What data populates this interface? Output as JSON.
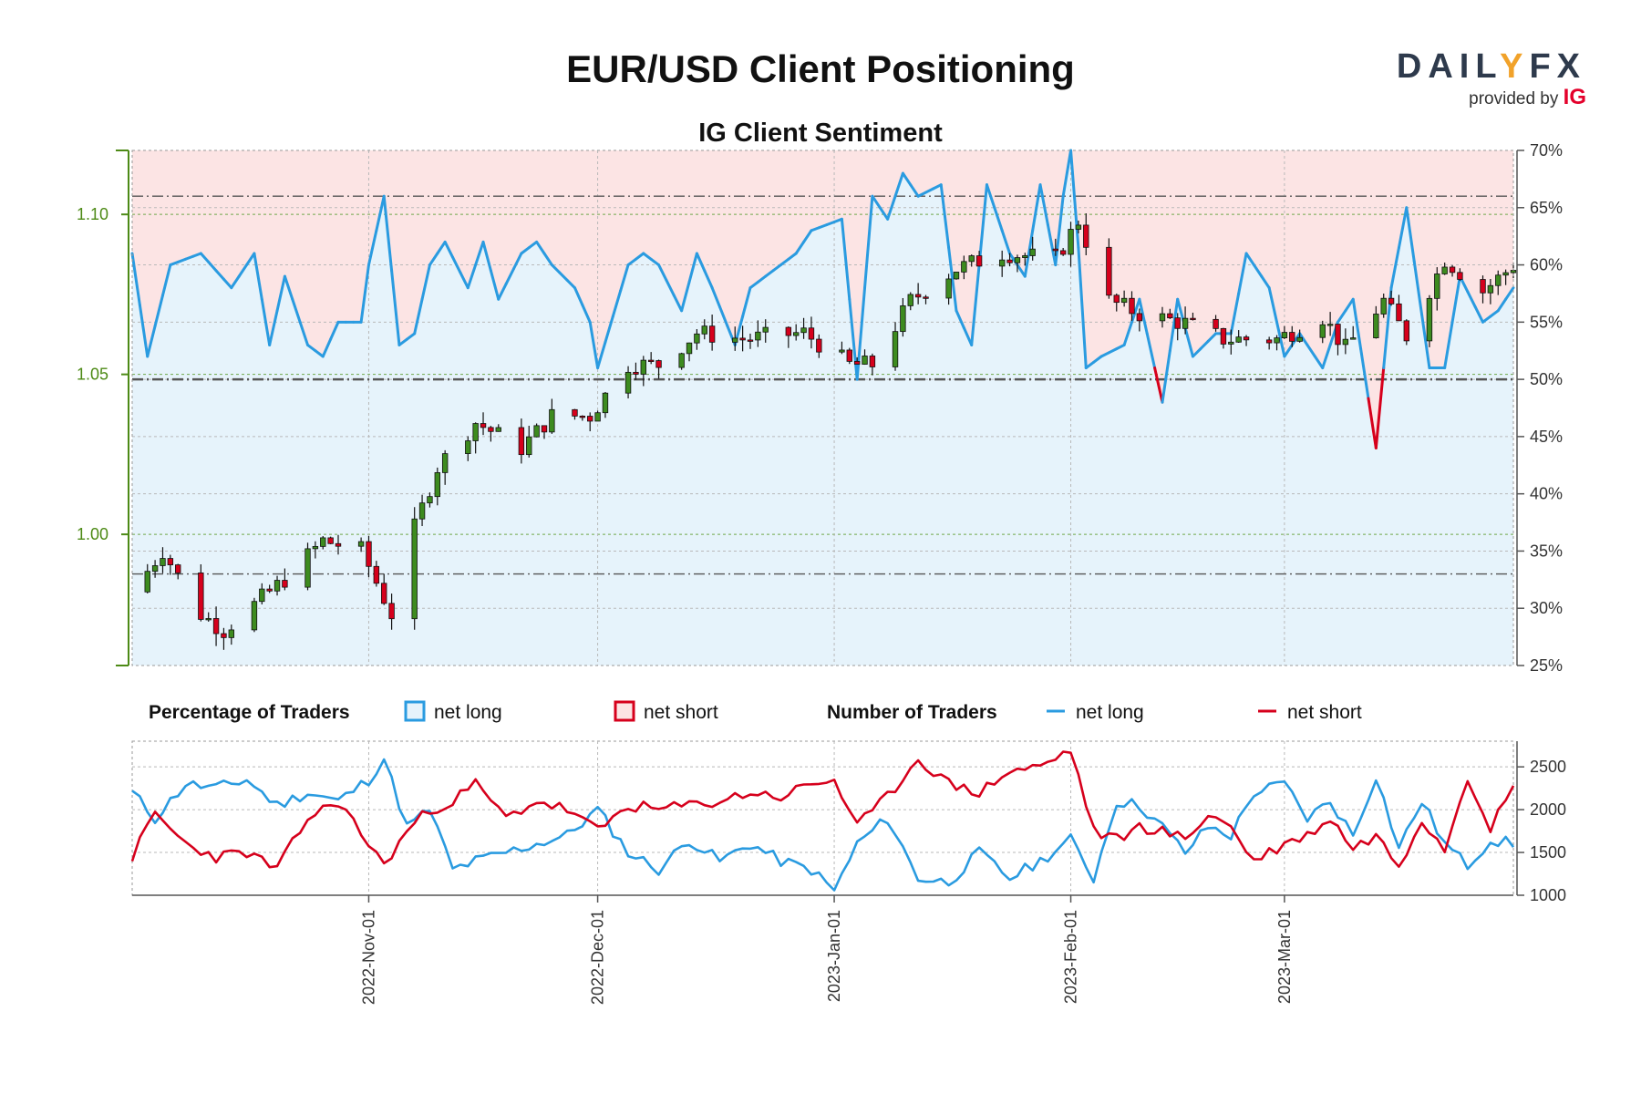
{
  "header": {
    "title": "EUR/USD Client Positioning",
    "subtitle": "IG Client Sentiment",
    "logo_main_a": "DAIL",
    "logo_main_b": "Y",
    "logo_main_c": "FX",
    "logo_sub": "provided by",
    "logo_sub_brand": "IG"
  },
  "colors": {
    "net_long": "#2a9be0",
    "net_short": "#d6001c",
    "long_fill": "#e6f3fb",
    "short_fill": "#fce4e4",
    "candle_up": "#3d8b1f",
    "candle_down": "#d6001c",
    "price_axis": "#4d8a16"
  },
  "legend": {
    "pct_header": "Percentage of Traders",
    "pct_long": "net long",
    "pct_short": "net short",
    "num_header": "Number of Traders",
    "num_long": "net long",
    "num_short": "net short"
  },
  "chart_data": {
    "type": "candlestick+line",
    "x_start": "2022-10-01",
    "x_end": "2023-03-31",
    "x_ticks": [
      "2022-Nov-01",
      "2022-Dec-01",
      "2023-Jan-01",
      "2023-Feb-01",
      "2023-Mar-01"
    ],
    "x_tick_dates": [
      "2022-11-01",
      "2022-12-01",
      "2023-01-01",
      "2023-02-01",
      "2023-03-01"
    ],
    "price_axis": {
      "ticks": [
        "1.00",
        "1.05",
        "1.10"
      ],
      "tick_values": [
        1.0,
        1.05,
        1.1
      ],
      "range": [
        0.959,
        1.12
      ]
    },
    "percent_axis": {
      "ticks": [
        "25%",
        "30%",
        "35%",
        "40%",
        "45%",
        "50%",
        "55%",
        "60%",
        "65%",
        "70%"
      ],
      "tick_values": [
        25,
        30,
        35,
        40,
        45,
        50,
        55,
        60,
        65,
        70
      ],
      "range": [
        25,
        70
      ]
    },
    "count_axis": {
      "ticks": [
        "1000",
        "1500",
        "2000",
        "2500"
      ],
      "tick_values": [
        1000,
        1500,
        2000,
        2500
      ],
      "range": [
        1000,
        2800
      ]
    },
    "reference_lines_pct": [
      66,
      50,
      33
    ],
    "price_anchor_dates": [
      "2022-10-01",
      "2022-10-05",
      "2022-10-10",
      "2022-10-13",
      "2022-10-17",
      "2022-10-21",
      "2022-10-26",
      "2022-10-31",
      "2022-11-04",
      "2022-11-07",
      "2022-11-10",
      "2022-11-15",
      "2022-11-21",
      "2022-11-25",
      "2022-11-30",
      "2022-12-05",
      "2022-12-09",
      "2022-12-14",
      "2022-12-20",
      "2022-12-28",
      "2023-01-03",
      "2023-01-06",
      "2023-01-11",
      "2023-01-17",
      "2023-01-23",
      "2023-01-30",
      "2023-02-02",
      "2023-02-06",
      "2023-02-10",
      "2023-02-16",
      "2023-02-21",
      "2023-02-28",
      "2023-03-06",
      "2023-03-09",
      "2023-03-14",
      "2023-03-17",
      "2023-03-22",
      "2023-03-27",
      "2023-03-31"
    ],
    "price_anchor_values": [
      0.982,
      0.995,
      0.975,
      0.97,
      0.978,
      0.986,
      0.998,
      0.995,
      0.975,
      1.002,
      1.021,
      1.035,
      1.027,
      1.037,
      1.037,
      1.053,
      1.053,
      1.063,
      1.061,
      1.063,
      1.053,
      1.053,
      1.073,
      1.083,
      1.088,
      1.086,
      1.098,
      1.073,
      1.069,
      1.066,
      1.061,
      1.061,
      1.068,
      1.058,
      1.073,
      1.062,
      1.086,
      1.076,
      1.084
    ],
    "long_pct_anchor_dates": [
      "2022-10-01",
      "2022-10-03",
      "2022-10-06",
      "2022-10-10",
      "2022-10-14",
      "2022-10-17",
      "2022-10-19",
      "2022-10-21",
      "2022-10-24",
      "2022-10-26",
      "2022-10-28",
      "2022-10-31",
      "2022-11-01",
      "2022-11-03",
      "2022-11-05",
      "2022-11-07",
      "2022-11-09",
      "2022-11-11",
      "2022-11-14",
      "2022-11-16",
      "2022-11-18",
      "2022-11-21",
      "2022-11-23",
      "2022-11-25",
      "2022-11-28",
      "2022-11-30",
      "2022-12-01",
      "2022-12-05",
      "2022-12-07",
      "2022-12-09",
      "2022-12-12",
      "2022-12-14",
      "2022-12-16",
      "2022-12-19",
      "2022-12-21",
      "2022-12-23",
      "2022-12-27",
      "2022-12-29",
      "2023-01-02",
      "2023-01-04",
      "2023-01-06",
      "2023-01-08",
      "2023-01-10",
      "2023-01-12",
      "2023-01-15",
      "2023-01-17",
      "2023-01-19",
      "2023-01-21",
      "2023-01-24",
      "2023-01-26",
      "2023-01-28",
      "2023-01-30",
      "2023-02-01",
      "2023-02-03",
      "2023-02-05",
      "2023-02-08",
      "2023-02-10",
      "2023-02-13",
      "2023-02-15",
      "2023-02-17",
      "2023-02-20",
      "2023-02-22",
      "2023-02-24",
      "2023-02-27",
      "2023-03-01",
      "2023-03-03",
      "2023-03-06",
      "2023-03-08",
      "2023-03-10",
      "2023-03-13",
      "2023-03-15",
      "2023-03-17",
      "2023-03-20",
      "2023-03-22",
      "2023-03-24",
      "2023-03-27",
      "2023-03-29",
      "2023-03-31"
    ],
    "long_pct_anchor_values": [
      61,
      52,
      60,
      61,
      58,
      61,
      53,
      59,
      53,
      52,
      55,
      55,
      60,
      66,
      53,
      54,
      60,
      62,
      58,
      62,
      57,
      61,
      62,
      60,
      58,
      55,
      51,
      60,
      61,
      60,
      56,
      61,
      58,
      53,
      58,
      59,
      61,
      63,
      64,
      50,
      66,
      64,
      68,
      66,
      67,
      56,
      53,
      67,
      61,
      59,
      67,
      60,
      72,
      51,
      52,
      53,
      57,
      48,
      57,
      52,
      54,
      54,
      61,
      58,
      52,
      54,
      51,
      55,
      57,
      44,
      58,
      65,
      51,
      51,
      59,
      55,
      56,
      58
    ],
    "long_count_anchor_dates": [
      "2022-10-01",
      "2022-10-04",
      "2022-10-08",
      "2022-10-12",
      "2022-10-16",
      "2022-10-20",
      "2022-10-24",
      "2022-10-28",
      "2022-11-01",
      "2022-11-03",
      "2022-11-06",
      "2022-11-09",
      "2022-11-12",
      "2022-11-15",
      "2022-11-19",
      "2022-11-23",
      "2022-11-27",
      "2022-12-01",
      "2022-12-05",
      "2022-12-09",
      "2022-12-13",
      "2022-12-17",
      "2022-12-21",
      "2022-12-25",
      "2022-12-29",
      "2023-01-01",
      "2023-01-04",
      "2023-01-08",
      "2023-01-12",
      "2023-01-16",
      "2023-01-20",
      "2023-01-24",
      "2023-01-28",
      "2023-02-01",
      "2023-02-04",
      "2023-02-07",
      "2023-02-10",
      "2023-02-13",
      "2023-02-16",
      "2023-02-19",
      "2023-02-22",
      "2023-02-25",
      "2023-03-01",
      "2023-03-04",
      "2023-03-07",
      "2023-03-10",
      "2023-03-13",
      "2023-03-16",
      "2023-03-19",
      "2023-03-22",
      "2023-03-25",
      "2023-03-28",
      "2023-03-31"
    ],
    "long_count_anchor_values": [
      2200,
      1900,
      2300,
      2250,
      2350,
      2050,
      2200,
      2100,
      2350,
      2600,
      1800,
      2000,
      1300,
      1400,
      1500,
      1600,
      1700,
      2000,
      1500,
      1300,
      1650,
      1400,
      1600,
      1400,
      1300,
      1050,
      1600,
      1900,
      1200,
      1150,
      1500,
      1200,
      1400,
      1650,
      1200,
      2100,
      2050,
      1800,
      1500,
      1800,
      1700,
      2200,
      2300,
      1900,
      2100,
      1700,
      2400,
      1550,
      2100,
      1600,
      1350,
      1650,
      1600
    ],
    "short_count_anchor_dates": [
      "2022-10-01",
      "2022-10-04",
      "2022-10-08",
      "2022-10-12",
      "2022-10-16",
      "2022-10-20",
      "2022-10-24",
      "2022-10-28",
      "2022-11-01",
      "2022-11-03",
      "2022-11-06",
      "2022-11-09",
      "2022-11-12",
      "2022-11-15",
      "2022-11-19",
      "2022-11-23",
      "2022-11-27",
      "2022-12-01",
      "2022-12-05",
      "2022-12-09",
      "2022-12-13",
      "2022-12-17",
      "2022-12-21",
      "2022-12-25",
      "2022-12-29",
      "2023-01-01",
      "2023-01-04",
      "2023-01-08",
      "2023-01-12",
      "2023-01-16",
      "2023-01-20",
      "2023-01-24",
      "2023-01-28",
      "2023-02-01",
      "2023-02-04",
      "2023-02-07",
      "2023-02-10",
      "2023-02-13",
      "2023-02-16",
      "2023-02-19",
      "2023-02-22",
      "2023-02-25",
      "2023-03-01",
      "2023-03-04",
      "2023-03-07",
      "2023-03-10",
      "2023-03-13",
      "2023-03-16",
      "2023-03-19",
      "2023-03-22",
      "2023-03-25",
      "2023-03-28",
      "2023-03-31"
    ],
    "short_count_anchor_values": [
      1450,
      1950,
      1600,
      1450,
      1500,
      1300,
      1900,
      2100,
      1600,
      1350,
      1750,
      2000,
      2100,
      2300,
      1900,
      2100,
      2000,
      1750,
      2050,
      2000,
      2050,
      2100,
      2200,
      2150,
      2300,
      2350,
      1800,
      2150,
      2600,
      2300,
      2200,
      2450,
      2500,
      2700,
      1750,
      1650,
      1800,
      1750,
      1650,
      1950,
      1800,
      1400,
      1600,
      1700,
      1900,
      1550,
      1700,
      1350,
      1900,
      1550,
      2400,
      1800,
      2250
    ]
  }
}
